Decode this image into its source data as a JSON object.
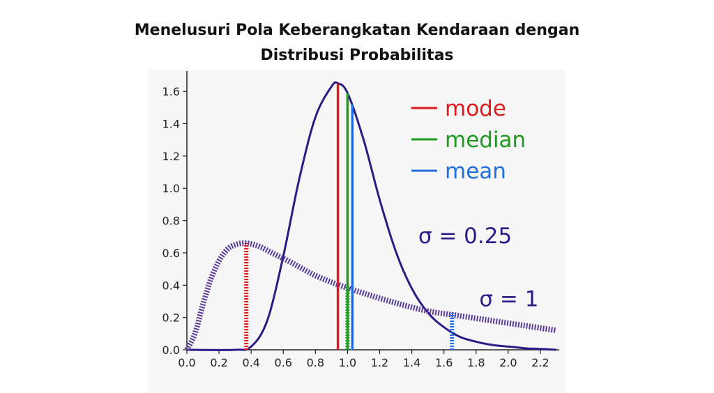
{
  "title_line1": "Menelusuri Pola Keberangkatan Kendaraan dengan",
  "title_line2": "Distribusi Probabilitas",
  "chart_data": {
    "type": "line",
    "title": "Menelusuri Pola Keberangkatan Kendaraan dengan Distribusi Probabilitas",
    "xlabel": "",
    "ylabel": "",
    "xlim": [
      0.0,
      2.3
    ],
    "ylim": [
      0.0,
      1.7
    ],
    "grid": false,
    "legend_position": "top-right",
    "x_ticks": [
      "0.0",
      "0.2",
      "0.4",
      "0.6",
      "0.8",
      "1.0",
      "1.2",
      "1.4",
      "1.6",
      "1.8",
      "2.0",
      "2.2"
    ],
    "y_ticks": [
      "0.0",
      "0.2",
      "0.4",
      "0.6",
      "0.8",
      "1.0",
      "1.2",
      "1.4",
      "1.6"
    ],
    "series": [
      {
        "sigma": 0.25,
        "style": "solid",
        "color": "#2c1b86",
        "x": [
          0.0,
          0.3,
          0.4,
          0.5,
          0.6,
          0.7,
          0.8,
          0.9,
          0.94,
          1.0,
          1.1,
          1.2,
          1.3,
          1.4,
          1.5,
          1.6,
          1.7,
          1.8,
          1.9,
          2.0,
          2.1,
          2.2,
          2.3
        ],
        "y": [
          0.0,
          0.0,
          0.02,
          0.18,
          0.58,
          1.06,
          1.44,
          1.63,
          1.65,
          1.59,
          1.3,
          0.93,
          0.61,
          0.38,
          0.23,
          0.14,
          0.08,
          0.05,
          0.03,
          0.02,
          0.01,
          0.005,
          0.0
        ]
      },
      {
        "sigma": 1,
        "style": "dotted",
        "color": "#5a3c9c",
        "x": [
          0.0,
          0.05,
          0.1,
          0.15,
          0.2,
          0.25,
          0.3,
          0.37,
          0.45,
          0.55,
          0.65,
          0.8,
          0.95,
          1.1,
          1.3,
          1.5,
          1.7,
          1.9,
          2.1,
          2.3
        ],
        "y": [
          0.0,
          0.1,
          0.28,
          0.44,
          0.55,
          0.62,
          0.65,
          0.66,
          0.64,
          0.59,
          0.54,
          0.46,
          0.4,
          0.35,
          0.29,
          0.24,
          0.21,
          0.18,
          0.15,
          0.12
        ]
      }
    ],
    "markers": [
      {
        "series": "sigma 0.25",
        "type": "mode",
        "x": 0.94,
        "y": 1.65,
        "color": "#e01919",
        "style": "solid"
      },
      {
        "series": "sigma 0.25",
        "type": "median",
        "x": 1.0,
        "y": 1.59,
        "color": "#1e9a1e",
        "style": "solid"
      },
      {
        "series": "sigma 0.25",
        "type": "mean",
        "x": 1.03,
        "y": 1.52,
        "color": "#1f6fe0",
        "style": "solid"
      },
      {
        "series": "sigma 1",
        "type": "mode",
        "x": 0.37,
        "y": 0.66,
        "color": "#e01919",
        "style": "dotted"
      },
      {
        "series": "sigma 1",
        "type": "median",
        "x": 1.0,
        "y": 0.39,
        "color": "#1e9a1e",
        "style": "dotted"
      },
      {
        "series": "sigma 1",
        "type": "mean",
        "x": 1.65,
        "y": 0.23,
        "color": "#1f6fe0",
        "style": "dotted"
      }
    ],
    "legend": [
      {
        "label": "mode",
        "color": "#e01919"
      },
      {
        "label": "median",
        "color": "#1e9a1e"
      },
      {
        "label": "mean",
        "color": "#1f6fe0"
      }
    ],
    "annotations": [
      {
        "text": "σ = 0.25",
        "x": 1.44,
        "y": 0.66
      },
      {
        "text": "σ = 1",
        "x": 1.82,
        "y": 0.27
      }
    ]
  }
}
